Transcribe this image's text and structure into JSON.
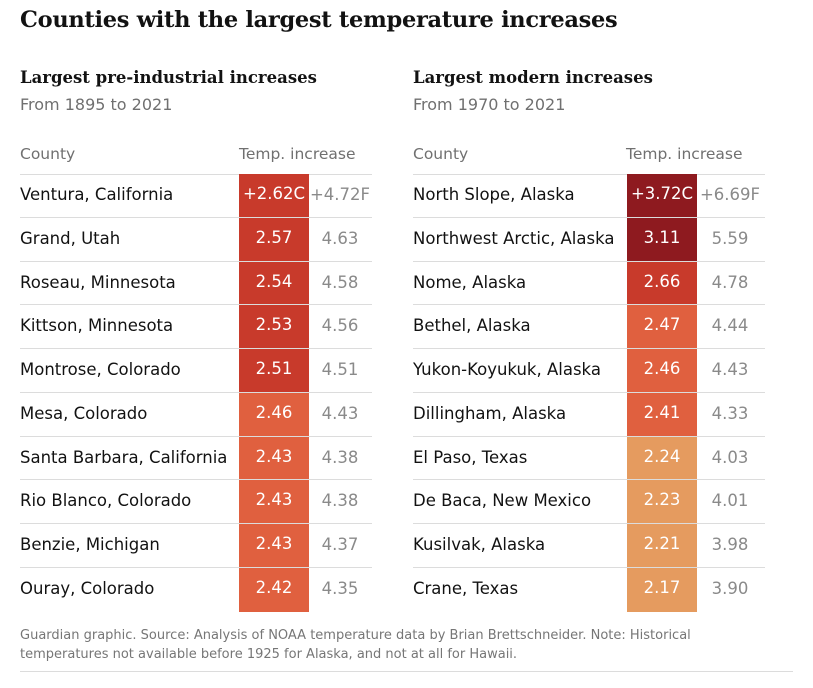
{
  "title": "Counties with the largest temperature increases",
  "chart_data": [
    {
      "type": "table",
      "title": "Largest pre-industrial increases",
      "subtitle": "From 1895 to 2021",
      "columns": [
        "County",
        "Temp. increase"
      ],
      "rows": [
        {
          "county": "Ventura, California",
          "celsius": "+2.62C",
          "fahrenheit": "+4.72F",
          "color": "#c83a2b"
        },
        {
          "county": "Grand, Utah",
          "celsius": "2.57",
          "fahrenheit": "4.63",
          "color": "#c83a2b"
        },
        {
          "county": "Roseau, Minnesota",
          "celsius": "2.54",
          "fahrenheit": "4.58",
          "color": "#c83a2b"
        },
        {
          "county": "Kittson, Minnesota",
          "celsius": "2.53",
          "fahrenheit": "4.56",
          "color": "#c83a2b"
        },
        {
          "county": "Montrose, Colorado",
          "celsius": "2.51",
          "fahrenheit": "4.51",
          "color": "#c83a2b"
        },
        {
          "county": "Mesa, Colorado",
          "celsius": "2.46",
          "fahrenheit": "4.43",
          "color": "#e0603f"
        },
        {
          "county": "Santa Barbara, California",
          "celsius": "2.43",
          "fahrenheit": "4.38",
          "color": "#e0603f"
        },
        {
          "county": "Rio Blanco, Colorado",
          "celsius": "2.43",
          "fahrenheit": "4.38",
          "color": "#e0603f"
        },
        {
          "county": "Benzie, Michigan",
          "celsius": "2.43",
          "fahrenheit": "4.37",
          "color": "#e0603f"
        },
        {
          "county": "Ouray, Colorado",
          "celsius": "2.42",
          "fahrenheit": "4.35",
          "color": "#e0603f"
        }
      ]
    },
    {
      "type": "table",
      "title": "Largest modern increases",
      "subtitle": "From 1970 to 2021",
      "columns": [
        "County",
        "Temp. increase"
      ],
      "rows": [
        {
          "county": "North Slope, Alaska",
          "celsius": "+3.72C",
          "fahrenheit": "+6.69F",
          "color": "#8e1a1f"
        },
        {
          "county": "Northwest Arctic, Alaska",
          "celsius": "3.11",
          "fahrenheit": "5.59",
          "color": "#8e1a1f"
        },
        {
          "county": "Nome, Alaska",
          "celsius": "2.66",
          "fahrenheit": "4.78",
          "color": "#c83a2b"
        },
        {
          "county": "Bethel, Alaska",
          "celsius": "2.47",
          "fahrenheit": "4.44",
          "color": "#e0603f"
        },
        {
          "county": "Yukon-Koyukuk, Alaska",
          "celsius": "2.46",
          "fahrenheit": "4.43",
          "color": "#e0603f"
        },
        {
          "county": "Dillingham, Alaska",
          "celsius": "2.41",
          "fahrenheit": "4.33",
          "color": "#e0603f"
        },
        {
          "county": "El Paso, Texas",
          "celsius": "2.24",
          "fahrenheit": "4.03",
          "color": "#e59b5f"
        },
        {
          "county": "De Baca, New Mexico",
          "celsius": "2.23",
          "fahrenheit": "4.01",
          "color": "#e59b5f"
        },
        {
          "county": "Kusilvak, Alaska",
          "celsius": "2.21",
          "fahrenheit": "3.98",
          "color": "#e59b5f"
        },
        {
          "county": "Crane, Texas",
          "celsius": "2.17",
          "fahrenheit": "3.90",
          "color": "#e59b5f"
        }
      ]
    }
  ],
  "footnote": "Guardian graphic. Source: Analysis of NOAA temperature data by Brian Brettschneider. Note: Historical temperatures not available before 1925 for Alaska, and not at all for Hawaii."
}
